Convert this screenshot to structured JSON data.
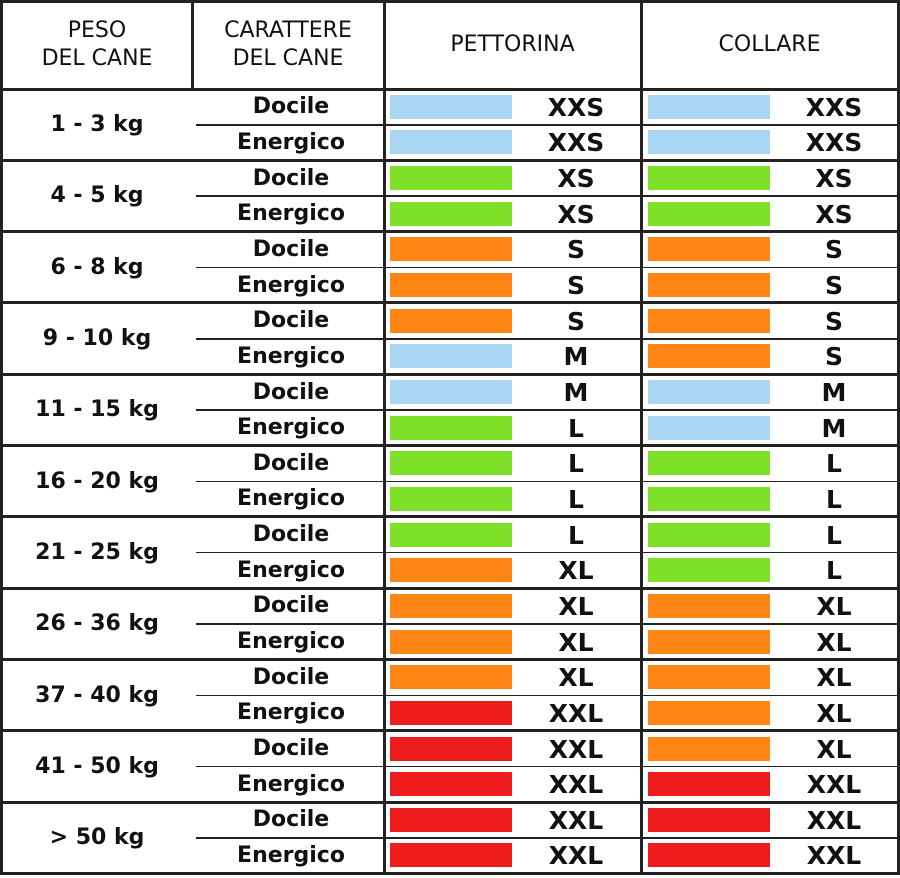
{
  "colors": {
    "XXS": "#a9d7f3",
    "M": "#a9d7f3",
    "XS": "#7fe02a",
    "L": "#7fe02a",
    "S": "#ff8615",
    "XL": "#ff8615",
    "XXL": "#ee1c1c"
  },
  "headers": {
    "weight": "PESO\nDEL CANE",
    "temperament": "CARATTERE\nDEL CANE",
    "harness": "PETTORINA",
    "collar": "COLLARE"
  },
  "groups": [
    {
      "weight": "1 - 3 kg",
      "rows": [
        {
          "temperament": "Docile",
          "harness": "XXS",
          "collar": "XXS"
        },
        {
          "temperament": "Energico",
          "harness": "XXS",
          "collar": "XXS"
        }
      ]
    },
    {
      "weight": "4 - 5 kg",
      "rows": [
        {
          "temperament": "Docile",
          "harness": "XS",
          "collar": "XS"
        },
        {
          "temperament": "Energico",
          "harness": "XS",
          "collar": "XS"
        }
      ]
    },
    {
      "weight": "6 - 8 kg",
      "rows": [
        {
          "temperament": "Docile",
          "harness": "S",
          "collar": "S"
        },
        {
          "temperament": "Energico",
          "harness": "S",
          "collar": "S"
        }
      ]
    },
    {
      "weight": "9 - 10 kg",
      "rows": [
        {
          "temperament": "Docile",
          "harness": "S",
          "collar": "S"
        },
        {
          "temperament": "Energico",
          "harness": "M",
          "collar": "S",
          "harness_color": "M"
        }
      ]
    },
    {
      "weight": "11 - 15 kg",
      "rows": [
        {
          "temperament": "Docile",
          "harness": "M",
          "collar": "M"
        },
        {
          "temperament": "Energico",
          "harness": "L",
          "collar": "M"
        }
      ]
    },
    {
      "weight": "16 - 20 kg",
      "rows": [
        {
          "temperament": "Docile",
          "harness": "L",
          "collar": "L"
        },
        {
          "temperament": "Energico",
          "harness": "L",
          "collar": "L"
        }
      ]
    },
    {
      "weight": "21 - 25 kg",
      "rows": [
        {
          "temperament": "Docile",
          "harness": "L",
          "collar": "L"
        },
        {
          "temperament": "Energico",
          "harness": "XL",
          "collar": "L"
        }
      ]
    },
    {
      "weight": "26 - 36 kg",
      "rows": [
        {
          "temperament": "Docile",
          "harness": "XL",
          "collar": "XL"
        },
        {
          "temperament": "Energico",
          "harness": "XL",
          "collar": "XL"
        }
      ]
    },
    {
      "weight": "37 - 40 kg",
      "rows": [
        {
          "temperament": "Docile",
          "harness": "XL",
          "collar": "XL"
        },
        {
          "temperament": "Energico",
          "harness": "XXL",
          "collar": "XL"
        }
      ]
    },
    {
      "weight": "41 - 50 kg",
      "rows": [
        {
          "temperament": "Docile",
          "harness": "XXL",
          "collar": "XL"
        },
        {
          "temperament": "Energico",
          "harness": "XXL",
          "collar": "XXL"
        }
      ]
    },
    {
      "weight": "> 50 kg",
      "rows": [
        {
          "temperament": "Docile",
          "harness": "XXL",
          "collar": "XXL"
        },
        {
          "temperament": "Energico",
          "harness": "XXL",
          "collar": "XXL"
        }
      ]
    }
  ]
}
